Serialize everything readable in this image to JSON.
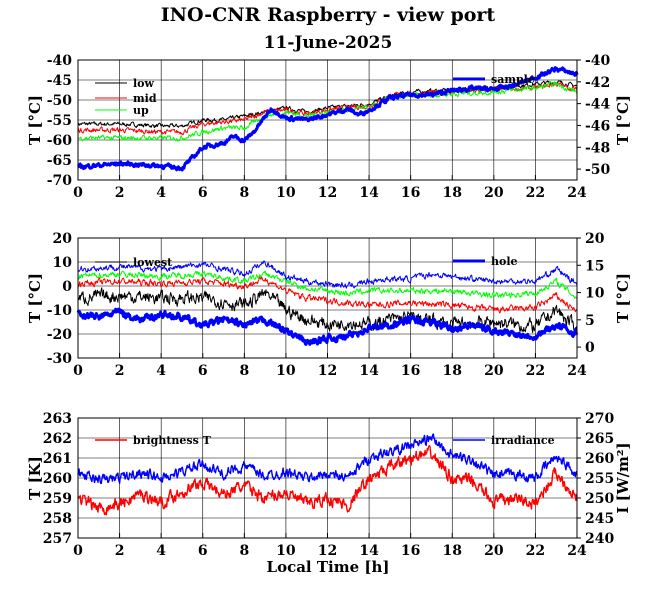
{
  "title": "INO-CNR Raspberry - view port",
  "subtitle": "11-June-2025",
  "xlabel": "Local Time [h]",
  "colors": {
    "black": "#000000",
    "red": "#ff0000",
    "green": "#00ff00",
    "blue": "#0000ff"
  },
  "chart_data": [
    {
      "type": "line",
      "xlim": [
        0,
        24
      ],
      "xticks": [
        0,
        2,
        4,
        6,
        8,
        10,
        12,
        14,
        16,
        18,
        20,
        22,
        24
      ],
      "ylabel": "T [°C]",
      "ylim": [
        -70,
        -40
      ],
      "yticks": [
        -70,
        -65,
        -60,
        -55,
        -50,
        -45,
        -40
      ],
      "y2label": "T [°C]",
      "y2lim": [
        -51,
        -40
      ],
      "y2ticks": [
        -50,
        -48,
        -46,
        -44,
        -42,
        -40
      ],
      "grid": true,
      "series": [
        {
          "name": "low",
          "color": "#000000",
          "axis": "left",
          "width": 1,
          "noise": 0.4,
          "points": [
            [
              0,
              -56
            ],
            [
              2,
              -56
            ],
            [
              4,
              -56.5
            ],
            [
              5,
              -56.5
            ],
            [
              6,
              -55
            ],
            [
              7,
              -55
            ],
            [
              8,
              -54
            ],
            [
              9,
              -53
            ],
            [
              10,
              -52
            ],
            [
              11,
              -53
            ],
            [
              12,
              -52
            ],
            [
              13,
              -51.5
            ],
            [
              14,
              -51
            ],
            [
              15,
              -49
            ],
            [
              16,
              -48
            ],
            [
              18,
              -47.5
            ],
            [
              20,
              -47
            ],
            [
              22,
              -46
            ],
            [
              23,
              -45.5
            ],
            [
              24,
              -46.5
            ]
          ]
        },
        {
          "name": "mid",
          "color": "#ff0000",
          "axis": "left",
          "width": 1,
          "noise": 0.5,
          "points": [
            [
              0,
              -57.5
            ],
            [
              2,
              -57.5
            ],
            [
              4,
              -58
            ],
            [
              5,
              -58
            ],
            [
              6,
              -56
            ],
            [
              7,
              -55.5
            ],
            [
              8,
              -55
            ],
            [
              9,
              -53
            ],
            [
              10,
              -52.5
            ],
            [
              11,
              -53.5
            ],
            [
              12,
              -52.5
            ],
            [
              13,
              -52
            ],
            [
              14,
              -51.5
            ],
            [
              15,
              -49
            ],
            [
              16,
              -48.5
            ],
            [
              18,
              -48
            ],
            [
              20,
              -47.5
            ],
            [
              22,
              -47
            ],
            [
              23,
              -46
            ],
            [
              24,
              -47.5
            ]
          ]
        },
        {
          "name": "up",
          "color": "#00ff00",
          "axis": "left",
          "width": 1,
          "noise": 0.5,
          "points": [
            [
              0,
              -59.5
            ],
            [
              2,
              -59.5
            ],
            [
              4,
              -59.5
            ],
            [
              5,
              -59.5
            ],
            [
              6,
              -58
            ],
            [
              7,
              -57
            ],
            [
              8,
              -57
            ],
            [
              9,
              -54
            ],
            [
              10,
              -53
            ],
            [
              11,
              -54
            ],
            [
              12,
              -53
            ],
            [
              13,
              -52.5
            ],
            [
              14,
              -52
            ],
            [
              15,
              -49.5
            ],
            [
              16,
              -49
            ],
            [
              18,
              -48.5
            ],
            [
              20,
              -48
            ],
            [
              22,
              -47
            ],
            [
              23,
              -46
            ],
            [
              24,
              -48
            ]
          ]
        },
        {
          "name": "sample",
          "color": "#0000ff",
          "axis": "right",
          "width": 3,
          "noise": 0.15,
          "points": [
            [
              0,
              -49.8
            ],
            [
              2,
              -49.5
            ],
            [
              3,
              -49.6
            ],
            [
              4,
              -49.7
            ],
            [
              5,
              -49.9
            ],
            [
              5.5,
              -49
            ],
            [
              6,
              -48
            ],
            [
              7,
              -47.6
            ],
            [
              7.5,
              -47
            ],
            [
              8,
              -47.4
            ],
            [
              8.5,
              -46.5
            ],
            [
              9,
              -45.2
            ],
            [
              9.3,
              -44.5
            ],
            [
              10,
              -45.3
            ],
            [
              11,
              -45.5
            ],
            [
              12,
              -45
            ],
            [
              13,
              -44.5
            ],
            [
              13.5,
              -45
            ],
            [
              14,
              -44.6
            ],
            [
              15,
              -43.5
            ],
            [
              16,
              -43.2
            ],
            [
              17,
              -43.2
            ],
            [
              18,
              -42.8
            ],
            [
              19,
              -42.6
            ],
            [
              20,
              -42.7
            ],
            [
              21,
              -42.3
            ],
            [
              22,
              -41.6
            ],
            [
              23,
              -40.8
            ],
            [
              24,
              -41.3
            ]
          ]
        }
      ]
    },
    {
      "type": "line",
      "xlim": [
        0,
        24
      ],
      "xticks": [
        0,
        2,
        4,
        6,
        8,
        10,
        12,
        14,
        16,
        18,
        20,
        22,
        24
      ],
      "ylabel": "T [°C]",
      "ylim": [
        -30,
        20
      ],
      "yticks": [
        -30,
        -20,
        -10,
        0,
        10,
        20
      ],
      "y2label": "T [°C]",
      "y2lim": [
        -2,
        20
      ],
      "y2ticks": [
        0,
        5,
        10,
        15,
        20
      ],
      "grid": true,
      "series": [
        {
          "name": "lowest",
          "color": "#000000",
          "axis": "left",
          "width": 1,
          "noise": 2.2,
          "points": [
            [
              0,
              -5
            ],
            [
              2,
              -4
            ],
            [
              4,
              -5
            ],
            [
              6,
              -5
            ],
            [
              8,
              -8
            ],
            [
              9,
              -3
            ],
            [
              10,
              -10
            ],
            [
              11,
              -14
            ],
            [
              12,
              -16
            ],
            [
              13,
              -15
            ],
            [
              14,
              -16
            ],
            [
              15,
              -14
            ],
            [
              16,
              -13
            ],
            [
              18,
              -16
            ],
            [
              20,
              -15
            ],
            [
              22,
              -17
            ],
            [
              23,
              -10
            ],
            [
              24,
              -18
            ]
          ]
        },
        {
          "name": "",
          "color": "#ff0000",
          "axis": "left",
          "width": 1,
          "noise": 1.1,
          "points": [
            [
              0,
              1
            ],
            [
              2,
              2
            ],
            [
              4,
              1
            ],
            [
              6,
              2
            ],
            [
              8,
              0
            ],
            [
              9,
              3
            ],
            [
              10,
              -2
            ],
            [
              11,
              -5
            ],
            [
              12,
              -6
            ],
            [
              13,
              -7
            ],
            [
              14,
              -8
            ],
            [
              16,
              -7
            ],
            [
              18,
              -8
            ],
            [
              20,
              -10
            ],
            [
              22,
              -9
            ],
            [
              23,
              -4
            ],
            [
              24,
              -11
            ]
          ]
        },
        {
          "name": "",
          "color": "#00ff00",
          "axis": "left",
          "width": 1,
          "noise": 1.0,
          "points": [
            [
              0,
              4
            ],
            [
              2,
              5
            ],
            [
              4,
              4
            ],
            [
              6,
              5
            ],
            [
              8,
              2
            ],
            [
              9,
              5
            ],
            [
              10,
              2
            ],
            [
              11,
              -1
            ],
            [
              12,
              -2
            ],
            [
              13,
              -3
            ],
            [
              14,
              -2
            ],
            [
              16,
              -2
            ],
            [
              18,
              -2
            ],
            [
              20,
              -4
            ],
            [
              22,
              -3
            ],
            [
              23,
              2
            ],
            [
              24,
              -5
            ]
          ]
        },
        {
          "name": "",
          "color": "#0000ff",
          "axis": "left",
          "width": 1,
          "noise": 1.0,
          "points": [
            [
              0,
              7
            ],
            [
              2,
              8
            ],
            [
              4,
              7
            ],
            [
              6,
              9
            ],
            [
              8,
              5
            ],
            [
              9,
              10
            ],
            [
              10,
              4
            ],
            [
              11,
              2
            ],
            [
              12,
              1
            ],
            [
              13,
              0
            ],
            [
              14,
              2
            ],
            [
              15,
              3
            ],
            [
              16,
              3
            ],
            [
              17,
              5
            ],
            [
              18,
              4
            ],
            [
              20,
              2
            ],
            [
              22,
              2
            ],
            [
              23,
              7
            ],
            [
              24,
              1
            ]
          ]
        },
        {
          "name": "hole",
          "color": "#0000ff",
          "axis": "right",
          "width": 3,
          "noise": 0.5,
          "points": [
            [
              0,
              6
            ],
            [
              1,
              5.5
            ],
            [
              2,
              6.5
            ],
            [
              3,
              5
            ],
            [
              4,
              6
            ],
            [
              5,
              5.5
            ],
            [
              6,
              4
            ],
            [
              7,
              5
            ],
            [
              8,
              4
            ],
            [
              9,
              5
            ],
            [
              10,
              3
            ],
            [
              11,
              0.8
            ],
            [
              12,
              1.5
            ],
            [
              13,
              2
            ],
            [
              14,
              3.5
            ],
            [
              15,
              4
            ],
            [
              16,
              5
            ],
            [
              17,
              4.5
            ],
            [
              18,
              3.5
            ],
            [
              19,
              4
            ],
            [
              20,
              3
            ],
            [
              21,
              2.5
            ],
            [
              22,
              2
            ],
            [
              23,
              4
            ],
            [
              24,
              2.5
            ]
          ]
        }
      ]
    },
    {
      "type": "line",
      "xlim": [
        0,
        24
      ],
      "xticks": [
        0,
        2,
        4,
        6,
        8,
        10,
        12,
        14,
        16,
        18,
        20,
        22,
        24
      ],
      "ylabel": "T [K]",
      "ylim": [
        257,
        263
      ],
      "yticks": [
        257,
        258,
        259,
        260,
        261,
        262,
        263
      ],
      "y2label": "I [W/m²]",
      "y2lim": [
        240,
        270
      ],
      "y2ticks": [
        240,
        245,
        250,
        255,
        260,
        265,
        270
      ],
      "grid": true,
      "series": [
        {
          "name": "brightness T",
          "color": "#ff0000",
          "axis": "left",
          "width": 1.4,
          "noise": 0.25,
          "points": [
            [
              0,
              259
            ],
            [
              1,
              258.5
            ],
            [
              2,
              258.7
            ],
            [
              3,
              259.2
            ],
            [
              4,
              258.8
            ],
            [
              5,
              259.3
            ],
            [
              6,
              259.8
            ],
            [
              7,
              259.2
            ],
            [
              8,
              259.6
            ],
            [
              9,
              259
            ],
            [
              10,
              259.3
            ],
            [
              11,
              258.7
            ],
            [
              12,
              259
            ],
            [
              13,
              258.6
            ],
            [
              14,
              260
            ],
            [
              15,
              260.5
            ],
            [
              16,
              261
            ],
            [
              17,
              261.2
            ],
            [
              18,
              260
            ],
            [
              19,
              259.8
            ],
            [
              20,
              258.8
            ],
            [
              21,
              259
            ],
            [
              22,
              258.7
            ],
            [
              23,
              260.3
            ],
            [
              24,
              259
            ]
          ]
        },
        {
          "name": "irradiance",
          "color": "#0000ff",
          "axis": "right",
          "width": 1.4,
          "noise": 1.0,
          "points": [
            [
              0,
              256
            ],
            [
              1,
              254.5
            ],
            [
              2,
              255
            ],
            [
              3,
              256.5
            ],
            [
              4,
              255
            ],
            [
              5,
              256.5
            ],
            [
              6,
              258.5
            ],
            [
              7,
              256
            ],
            [
              8,
              258
            ],
            [
              9,
              255.5
            ],
            [
              10,
              256.5
            ],
            [
              11,
              255
            ],
            [
              12,
              256
            ],
            [
              13,
              255
            ],
            [
              14,
              260
            ],
            [
              15,
              261.5
            ],
            [
              16,
              263
            ],
            [
              17,
              265
            ],
            [
              18,
              260.5
            ],
            [
              19,
              259.5
            ],
            [
              20,
              255.5
            ],
            [
              21,
              256
            ],
            [
              22,
              255
            ],
            [
              23,
              260.5
            ],
            [
              24,
              256
            ]
          ]
        }
      ]
    }
  ]
}
